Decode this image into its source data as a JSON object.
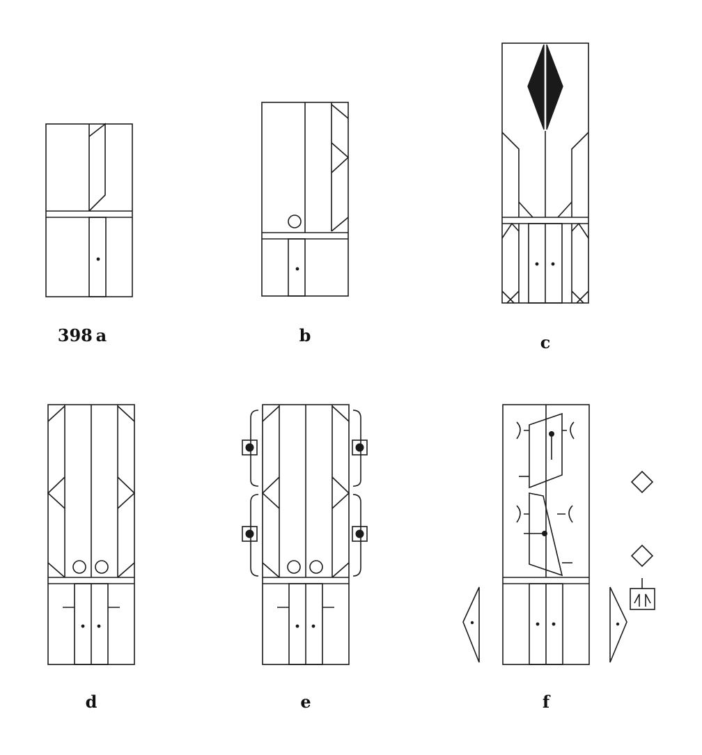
{
  "figures": [
    {
      "id": "a",
      "label": "398 a"
    },
    {
      "id": "b",
      "label": "b"
    },
    {
      "id": "c",
      "label": "c"
    },
    {
      "id": "d",
      "label": "d"
    },
    {
      "id": "e",
      "label": "e"
    },
    {
      "id": "f",
      "label": "f"
    }
  ],
  "colors": {
    "ink": "#1a1a1a",
    "paper": "#ffffff"
  }
}
